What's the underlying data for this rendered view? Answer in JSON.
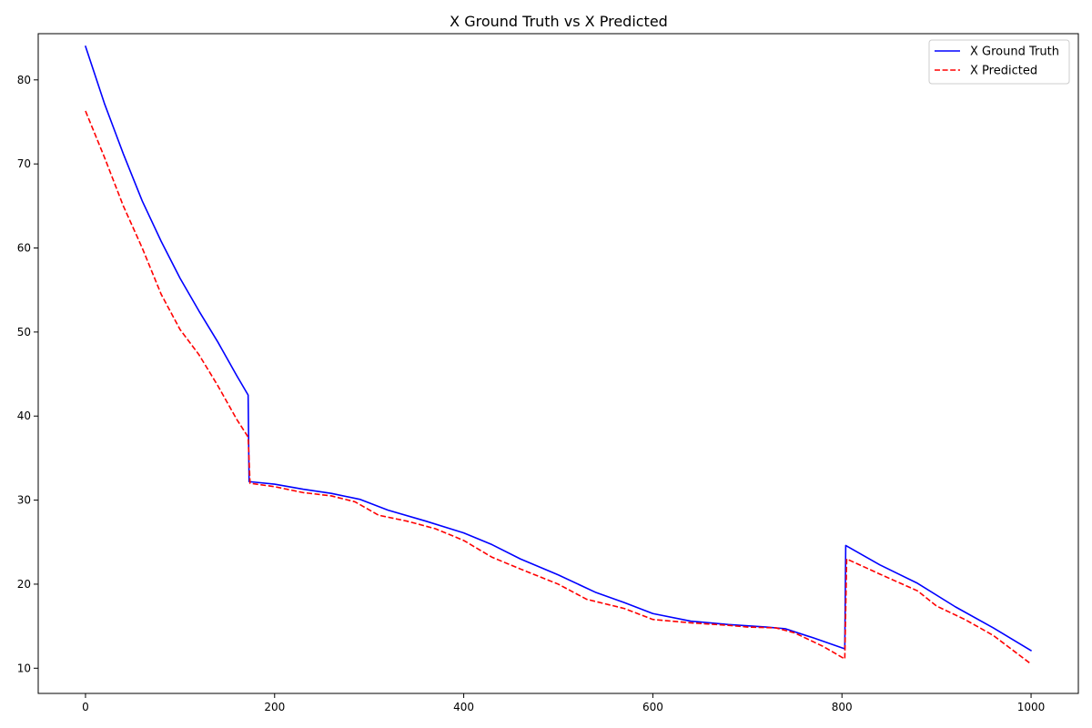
{
  "chart_data": {
    "type": "line",
    "title": "X Ground Truth vs X Predicted",
    "xlabel": "",
    "ylabel": "",
    "xlim": [
      -50,
      1050
    ],
    "ylim": [
      7,
      85.5
    ],
    "xticks": [
      0,
      200,
      400,
      600,
      800,
      1000
    ],
    "yticks": [
      10,
      20,
      30,
      40,
      50,
      60,
      70,
      80
    ],
    "grid": false,
    "legend": "top-right",
    "series": [
      {
        "name": "X Ground Truth",
        "color": "#0000ff",
        "style": "solid",
        "points": [
          [
            0,
            84
          ],
          [
            10,
            80.6
          ],
          [
            20,
            77.2
          ],
          [
            40,
            71.2
          ],
          [
            60,
            65.6
          ],
          [
            80,
            60.8
          ],
          [
            100,
            56.4
          ],
          [
            120,
            52.5
          ],
          [
            140,
            48.8
          ],
          [
            160,
            44.8
          ],
          [
            172,
            42.5
          ],
          [
            173,
            32.2
          ],
          [
            200,
            31.9
          ],
          [
            230,
            31.3
          ],
          [
            260,
            30.8
          ],
          [
            290,
            30.1
          ],
          [
            320,
            28.8
          ],
          [
            360,
            27.5
          ],
          [
            400,
            26.1
          ],
          [
            430,
            24.7
          ],
          [
            460,
            23.0
          ],
          [
            500,
            21.1
          ],
          [
            540,
            19.0
          ],
          [
            570,
            17.8
          ],
          [
            600,
            16.5
          ],
          [
            640,
            15.6
          ],
          [
            680,
            15.2
          ],
          [
            720,
            14.9
          ],
          [
            740,
            14.7
          ],
          [
            770,
            13.6
          ],
          [
            803,
            12.3
          ],
          [
            804,
            24.6
          ],
          [
            840,
            22.3
          ],
          [
            880,
            20.1
          ],
          [
            920,
            17.3
          ],
          [
            960,
            14.8
          ],
          [
            1000,
            12.1
          ]
        ]
      },
      {
        "name": "X Predicted",
        "color": "#ff0000",
        "style": "dashed",
        "points": [
          [
            0,
            76.3
          ],
          [
            20,
            70.8
          ],
          [
            40,
            65
          ],
          [
            60,
            60
          ],
          [
            80,
            54.5
          ],
          [
            100,
            50.3
          ],
          [
            120,
            47.3
          ],
          [
            140,
            43.6
          ],
          [
            160,
            39.6
          ],
          [
            172,
            37.5
          ],
          [
            174,
            32
          ],
          [
            200,
            31.6
          ],
          [
            230,
            30.9
          ],
          [
            260,
            30.5
          ],
          [
            285,
            29.8
          ],
          [
            310,
            28.2
          ],
          [
            340,
            27.5
          ],
          [
            370,
            26.6
          ],
          [
            400,
            25.2
          ],
          [
            430,
            23.2
          ],
          [
            460,
            21.8
          ],
          [
            500,
            20
          ],
          [
            530,
            18.2
          ],
          [
            570,
            17.1
          ],
          [
            600,
            15.8
          ],
          [
            640,
            15.4
          ],
          [
            680,
            15.1
          ],
          [
            700,
            14.9
          ],
          [
            730,
            14.8
          ],
          [
            750,
            14.2
          ],
          [
            780,
            12.6
          ],
          [
            803,
            11.1
          ],
          [
            805,
            23
          ],
          [
            840,
            21.2
          ],
          [
            880,
            19.2
          ],
          [
            900,
            17.4
          ],
          [
            930,
            15.8
          ],
          [
            960,
            13.9
          ],
          [
            1000,
            10.5
          ]
        ]
      }
    ]
  }
}
